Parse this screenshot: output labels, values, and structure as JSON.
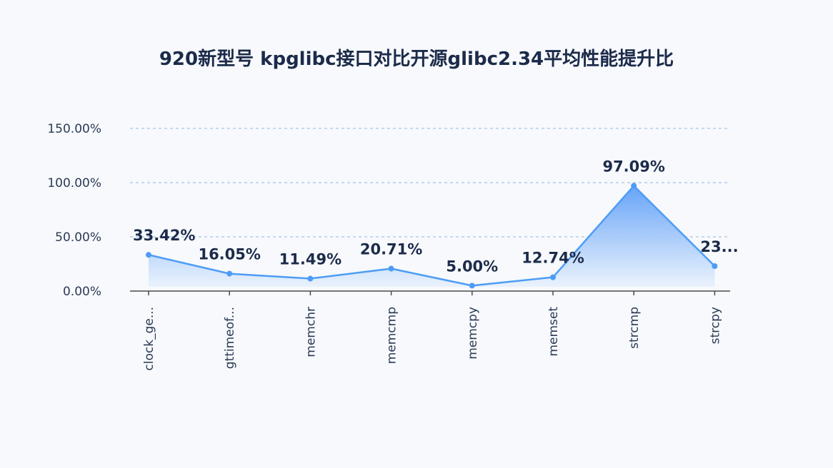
{
  "chart_data": {
    "type": "area",
    "title": "920新型号 kpglibc接口对比开源glibc2.34平均性能提升比",
    "categories": [
      "clock_ge...",
      "gttimeof...",
      "memchr",
      "memcmp",
      "memcpy",
      "memset",
      "strcmp",
      "strcpy"
    ],
    "values": [
      33.42,
      16.05,
      11.49,
      20.71,
      5.0,
      12.74,
      97.09,
      23.0
    ],
    "data_labels": [
      "33.42%",
      "16.05%",
      "11.49%",
      "20.71%",
      "5.00%",
      "12.74%",
      "97.09%",
      "23..."
    ],
    "y_ticks": [
      "0.00%",
      "50.00%",
      "100.00%",
      "150.00%"
    ],
    "ylim": [
      0,
      150
    ],
    "grid": true,
    "legend": "none",
    "colors": {
      "line": "#4d9cf5",
      "area_top": "#5b9df7",
      "area_bottom": "#eef5fd",
      "grid": "#a9c3ea",
      "axis": "#4a4a4a"
    }
  }
}
